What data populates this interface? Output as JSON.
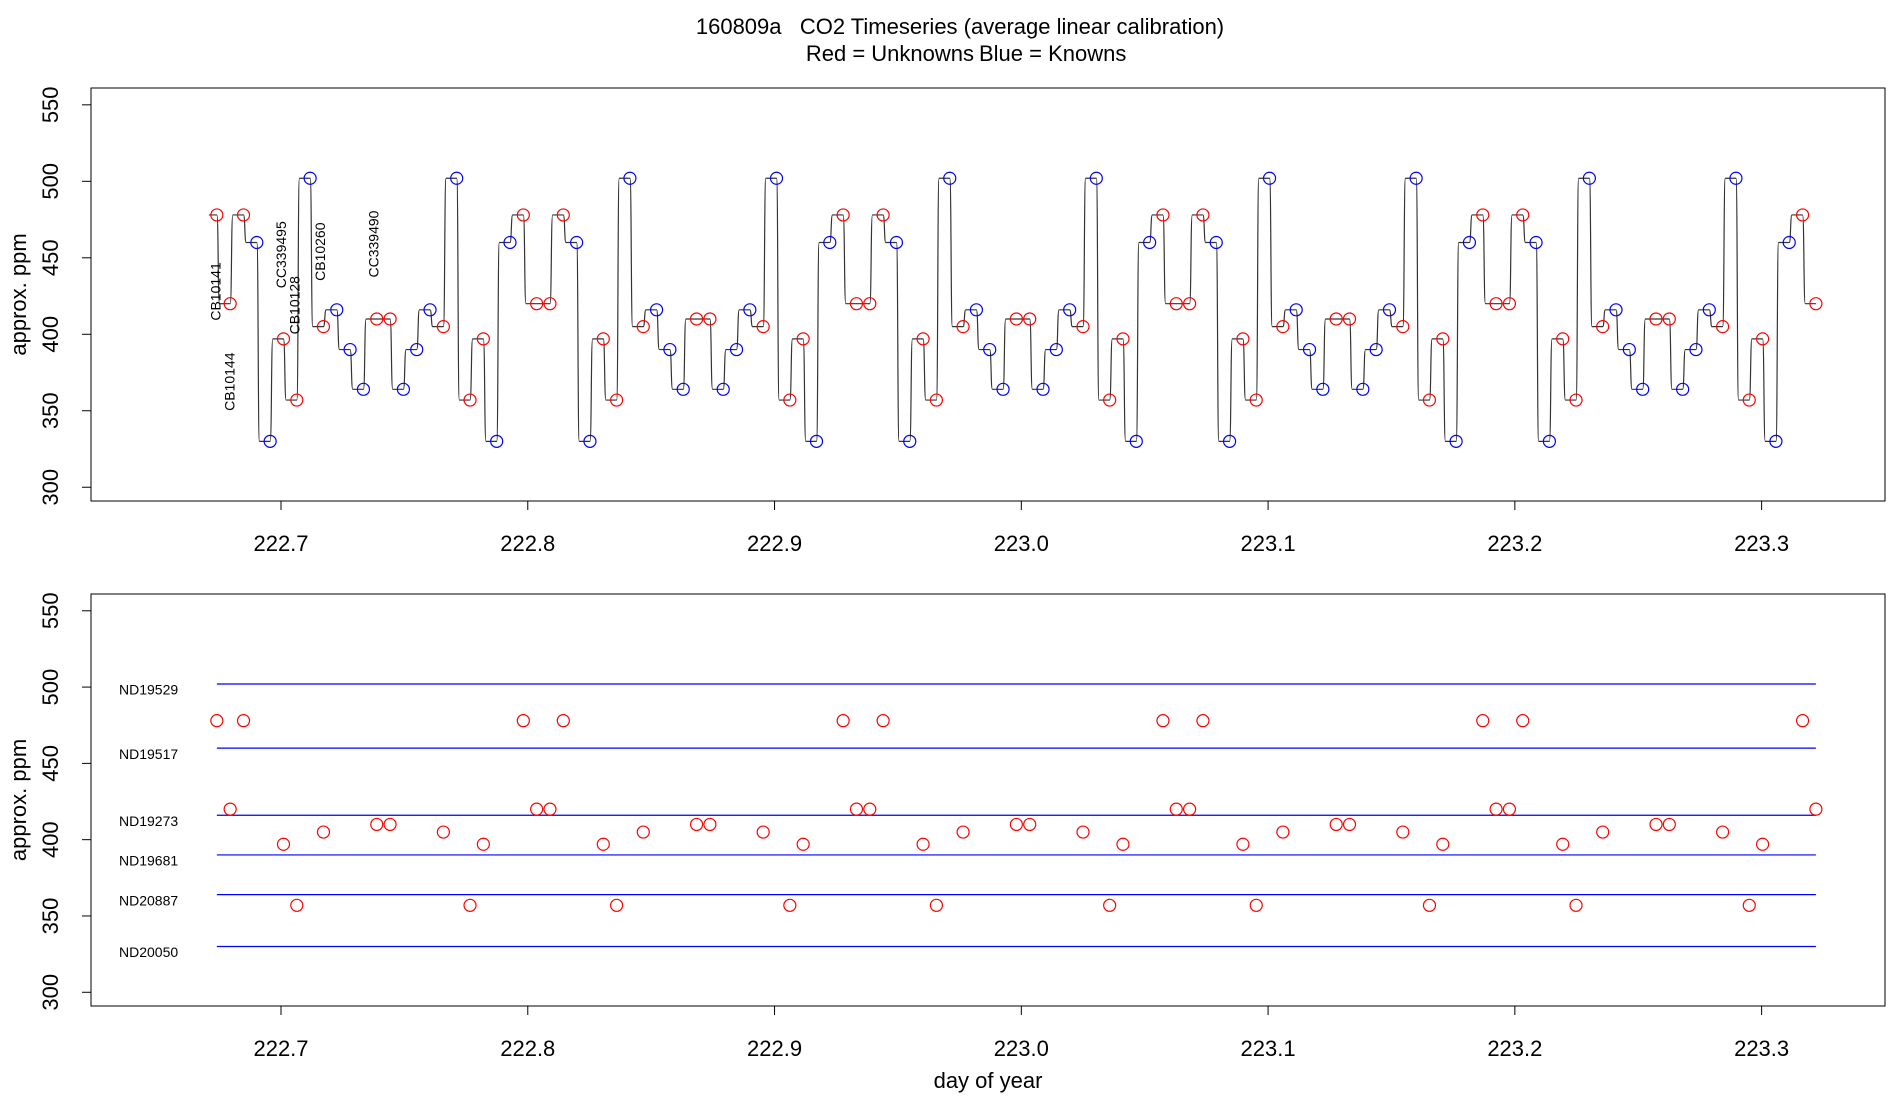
{
  "chart_data": [
    {
      "type": "line",
      "title": "160809a   CO2 Timeseries (average linear calibration)",
      "subtitle": [
        "Red = Unknowns",
        "Blue = Knowns"
      ],
      "subtitle_colors": [
        "#ff0000",
        "#0000ff"
      ],
      "y_label": "approx. ppm",
      "x": [
        222.674,
        222.6794,
        222.6848,
        222.6902,
        222.6956,
        222.701,
        222.7064,
        222.7118,
        222.7172,
        222.7226,
        222.728,
        222.7334,
        222.7388,
        222.7442,
        222.7496,
        222.755,
        222.7604,
        222.7658,
        222.7712,
        222.7766,
        222.782,
        222.7874,
        222.7928,
        222.7982,
        222.8036,
        222.809,
        222.8144,
        222.8198,
        222.8252,
        222.8306,
        222.836,
        222.8414,
        222.8468,
        222.8522,
        222.8576,
        222.863,
        222.8684,
        222.8738,
        222.8792,
        222.8846,
        222.89,
        222.8954,
        222.9008,
        222.9062,
        222.9116,
        222.917,
        222.9224,
        222.9278,
        222.9332,
        222.9386,
        222.944,
        222.9494,
        222.9548,
        222.9602,
        222.9656,
        222.971,
        222.9764,
        222.9818,
        222.9872,
        222.9926,
        222.998,
        223.0034,
        223.0088,
        223.0142,
        223.0196,
        223.025,
        223.0304,
        223.0358,
        223.0412,
        223.0466,
        223.052,
        223.0574,
        223.0628,
        223.0682,
        223.0736,
        223.079,
        223.0844,
        223.0898,
        223.0952,
        223.1006,
        223.106,
        223.1114,
        223.1168,
        223.1222,
        223.1276,
        223.133,
        223.1384,
        223.1438,
        223.1492,
        223.1546,
        223.16,
        223.1654,
        223.1708,
        223.1762,
        223.1816,
        223.187,
        223.1924,
        223.1978,
        223.2032,
        223.2086,
        223.214,
        223.2194,
        223.2248,
        223.2302,
        223.2356,
        223.241,
        223.2464,
        223.2518,
        223.2572,
        223.2626,
        223.268,
        223.2734,
        223.2788,
        223.2842,
        223.2896,
        223.295,
        223.3004,
        223.3058,
        223.3112,
        223.3166,
        223.322
      ],
      "values": [
        478,
        420,
        478,
        460,
        330,
        397,
        357,
        502,
        405,
        416,
        390,
        364,
        410,
        410,
        364,
        390,
        416,
        405,
        502,
        357,
        397,
        330,
        460,
        478,
        420,
        420,
        478,
        460,
        330,
        397,
        357,
        502,
        405,
        416,
        390,
        364,
        410,
        410,
        364,
        390,
        416,
        405,
        502,
        357,
        397,
        330,
        460,
        478,
        420,
        420,
        478,
        460,
        330,
        397,
        357,
        502,
        405,
        416,
        390,
        364,
        410,
        410,
        364,
        390,
        416,
        405,
        502,
        357,
        397,
        330,
        460,
        478,
        420,
        420,
        478,
        460,
        330,
        397,
        357,
        502,
        405,
        416,
        390,
        364,
        410,
        410,
        364,
        390,
        416,
        405,
        502,
        357,
        397,
        330,
        460,
        478,
        420,
        420,
        478,
        460,
        330,
        397,
        357,
        502,
        405,
        416,
        390,
        364,
        410,
        410,
        364,
        390,
        416,
        405,
        502,
        357,
        397,
        330,
        460,
        478,
        420
      ],
      "point_colors": [
        "red",
        "red",
        "red",
        "blue",
        "blue",
        "red",
        "red",
        "blue",
        "red",
        "blue",
        "blue",
        "blue",
        "red",
        "red",
        "blue",
        "blue",
        "blue",
        "red",
        "blue",
        "red",
        "red",
        "blue",
        "blue",
        "red",
        "red",
        "red",
        "red",
        "blue",
        "blue",
        "red",
        "red",
        "blue",
        "red",
        "blue",
        "blue",
        "blue",
        "red",
        "red",
        "blue",
        "blue",
        "blue",
        "red",
        "blue",
        "red",
        "red",
        "blue",
        "blue",
        "red",
        "red",
        "red",
        "red",
        "blue",
        "blue",
        "red",
        "red",
        "blue",
        "red",
        "blue",
        "blue",
        "blue",
        "red",
        "red",
        "blue",
        "blue",
        "blue",
        "red",
        "blue",
        "red",
        "red",
        "blue",
        "blue",
        "red",
        "red",
        "red",
        "red",
        "blue",
        "blue",
        "red",
        "red",
        "blue",
        "red",
        "blue",
        "blue",
        "blue",
        "red",
        "red",
        "blue",
        "blue",
        "blue",
        "red",
        "blue",
        "red",
        "red",
        "blue",
        "blue",
        "red",
        "red",
        "red",
        "red",
        "blue",
        "blue",
        "red",
        "red",
        "blue",
        "red",
        "blue",
        "blue",
        "blue",
        "red",
        "red",
        "blue",
        "blue",
        "blue",
        "red",
        "blue",
        "red",
        "red",
        "blue",
        "blue",
        "red",
        "red"
      ],
      "line_color": "#333333",
      "annotations": [
        {
          "text": "CB10141",
          "x": 222.674,
          "y": 428
        },
        {
          "text": "CB10144",
          "x": 222.6797,
          "y": 369
        },
        {
          "text": "CC339495",
          "x": 222.7005,
          "y": 452
        },
        {
          "text": "CB10128",
          "x": 222.706,
          "y": 419
        },
        {
          "text": "CB10260",
          "x": 222.7164,
          "y": 454
        },
        {
          "text": "CC339490",
          "x": 222.738,
          "y": 459
        }
      ],
      "annotation_color": "#ff0000",
      "xlim": [
        222.623,
        223.35
      ],
      "ylim": [
        291,
        561
      ],
      "xticks": [
        222.7,
        222.8,
        222.9,
        {
          "value": 223,
          "label": "223.0"
        },
        223.1,
        223.2,
        223.3
      ],
      "yticks": [
        300,
        350,
        400,
        450,
        500,
        550
      ]
    },
    {
      "type": "scatter",
      "y_label": "approx. ppm",
      "x_label": "day of year",
      "x": [
        222.674,
        222.6794,
        222.6848,
        222.701,
        222.7064,
        222.7172,
        222.7388,
        222.7442,
        222.7658,
        222.7766,
        222.782,
        222.7982,
        222.8036,
        222.809,
        222.8144,
        222.8306,
        222.836,
        222.8468,
        222.8684,
        222.8738,
        222.8954,
        222.9062,
        222.9116,
        222.9278,
        222.9332,
        222.9386,
        222.944,
        222.9602,
        222.9656,
        222.9764,
        222.998,
        223.0034,
        223.025,
        223.0358,
        223.0412,
        223.0574,
        223.0628,
        223.0682,
        223.0736,
        223.0898,
        223.0952,
        223.106,
        223.1276,
        223.133,
        223.1546,
        223.1654,
        223.1708,
        223.187,
        223.1924,
        223.1978,
        223.2032,
        223.2194,
        223.2248,
        223.2356,
        223.2572,
        223.2626,
        223.2842,
        223.295,
        223.3004,
        223.3166,
        223.322
      ],
      "values": [
        478,
        420,
        478,
        397,
        357,
        405,
        410,
        410,
        405,
        357,
        397,
        478,
        420,
        420,
        478,
        397,
        357,
        405,
        410,
        410,
        405,
        357,
        397,
        478,
        420,
        420,
        478,
        397,
        357,
        405,
        410,
        410,
        405,
        357,
        397,
        478,
        420,
        420,
        478,
        397,
        357,
        405,
        410,
        410,
        405,
        357,
        397,
        478,
        420,
        420,
        478,
        397,
        357,
        405,
        410,
        410,
        405,
        357,
        397,
        478,
        420
      ],
      "color": "#ff0000",
      "reference_lines": [
        {
          "label": "ND19529",
          "value": 502
        },
        {
          "label": "ND19517",
          "value": 460
        },
        {
          "label": "ND19273",
          "value": 416
        },
        {
          "label": "ND19681",
          "value": 390
        },
        {
          "label": "ND20887",
          "value": 364
        },
        {
          "label": "ND20050",
          "value": 330
        }
      ],
      "reference_color": "#0000ff",
      "xlim": [
        222.623,
        223.35
      ],
      "ylim": [
        291,
        561
      ],
      "xticks": [
        222.7,
        222.8,
        222.9,
        {
          "value": 223,
          "label": "223.0"
        },
        223.1,
        223.2,
        223.3
      ],
      "yticks": [
        300,
        350,
        400,
        450,
        500,
        550
      ]
    }
  ]
}
